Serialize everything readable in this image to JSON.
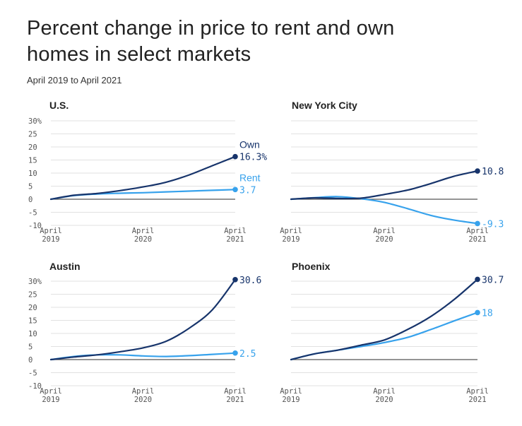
{
  "header": {
    "title": "Percent change in price to rent and own homes in select markets",
    "subtitle": "April 2019 to April 2021"
  },
  "colors": {
    "own": "#17346b",
    "rent": "#37a2ec",
    "grid": "#e1e1e1",
    "zero": "#555555"
  },
  "chart_data": [
    {
      "type": "line",
      "title": "U.S.",
      "x": [
        "2019-04",
        "2019-07",
        "2019-10",
        "2020-01",
        "2020-04",
        "2020-07",
        "2020-10",
        "2021-01",
        "2021-04"
      ],
      "xticks": [
        [
          "April",
          "2019"
        ],
        [
          "April",
          "2020"
        ],
        [
          "April",
          "2021"
        ]
      ],
      "yticks": [
        "30%",
        "25",
        "20",
        "15",
        "10",
        "5",
        "0",
        "-5",
        "-10"
      ],
      "ylim": [
        -10,
        30
      ],
      "series": [
        {
          "name": "Own",
          "end_label": "16.3%",
          "values": [
            0,
            1.5,
            2.2,
            3.3,
            4.7,
            6.5,
            9.3,
            12.8,
            16.3
          ]
        },
        {
          "name": "Rent",
          "end_label": "3.7",
          "values": [
            0,
            1.4,
            2.0,
            2.3,
            2.5,
            2.8,
            3.1,
            3.4,
            3.7
          ]
        }
      ]
    },
    {
      "type": "line",
      "title": "New York City",
      "x": [
        "2019-04",
        "2019-07",
        "2019-10",
        "2020-01",
        "2020-04",
        "2020-07",
        "2020-10",
        "2021-01",
        "2021-04"
      ],
      "xticks": [
        [
          "April",
          "2019"
        ],
        [
          "April",
          "2020"
        ],
        [
          "April",
          "2021"
        ]
      ],
      "ylim": [
        -10,
        30
      ],
      "series": [
        {
          "name": "",
          "end_label": "10.8",
          "values": [
            0,
            0.5,
            0.3,
            0.4,
            1.8,
            3.5,
            6.0,
            8.8,
            10.8
          ]
        },
        {
          "name": "",
          "end_label": "-9.3",
          "values": [
            0,
            0.6,
            1.0,
            0.2,
            -1.2,
            -3.6,
            -6.2,
            -8.0,
            -9.3
          ]
        }
      ]
    },
    {
      "type": "line",
      "title": "Austin",
      "x": [
        "2019-04",
        "2019-07",
        "2019-10",
        "2020-01",
        "2020-04",
        "2020-07",
        "2020-10",
        "2021-01",
        "2021-04"
      ],
      "xticks": [
        [
          "April",
          "2019"
        ],
        [
          "April",
          "2020"
        ],
        [
          "April",
          "2021"
        ]
      ],
      "yticks": [
        "30%",
        "25",
        "20",
        "15",
        "10",
        "5",
        "0",
        "-5",
        "-10"
      ],
      "ylim": [
        -10,
        30
      ],
      "series": [
        {
          "name": "",
          "end_label": "30.6",
          "values": [
            0,
            1.0,
            1.8,
            3.0,
            4.5,
            7.0,
            12.0,
            19.0,
            30.6
          ]
        },
        {
          "name": "",
          "end_label": "2.5",
          "values": [
            0,
            1.2,
            1.8,
            1.8,
            1.4,
            1.2,
            1.5,
            2.0,
            2.5
          ]
        }
      ]
    },
    {
      "type": "line",
      "title": "Phoenix",
      "x": [
        "2019-04",
        "2019-07",
        "2019-10",
        "2020-01",
        "2020-04",
        "2020-07",
        "2020-10",
        "2021-01",
        "2021-04"
      ],
      "xticks": [
        [
          "April",
          "2019"
        ],
        [
          "April",
          "2020"
        ],
        [
          "April",
          "2021"
        ]
      ],
      "ylim": [
        -10,
        30
      ],
      "series": [
        {
          "name": "",
          "end_label": "30.7",
          "values": [
            0,
            2.2,
            3.6,
            5.5,
            7.5,
            11.5,
            16.5,
            23.0,
            30.7
          ]
        },
        {
          "name": "",
          "end_label": "18",
          "values": [
            0,
            2.2,
            3.6,
            5.0,
            6.5,
            8.5,
            11.5,
            14.8,
            18.0
          ]
        }
      ]
    }
  ]
}
